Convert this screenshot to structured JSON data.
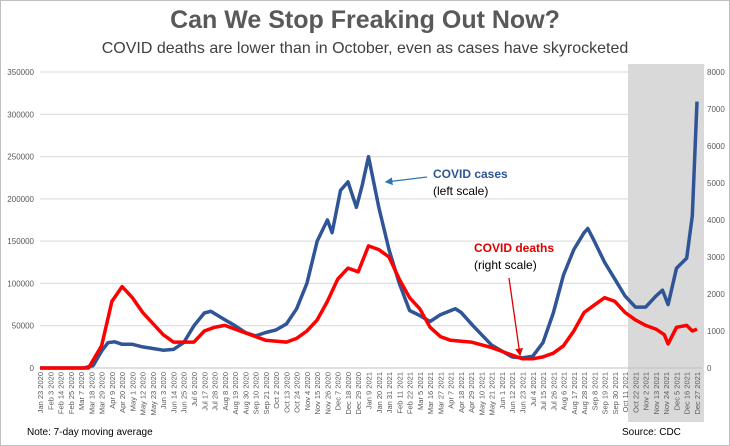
{
  "title": "Can We Stop Freaking Out Now?",
  "subtitle": "COVID deaths are lower than in October, even as cases have skyrocketed",
  "note": "Note: 7-day moving average",
  "source": "Source: CDC",
  "chart_data": {
    "type": "line",
    "x_axis": {
      "type": "date",
      "range": [
        "2020-01-23",
        "2021-12-27"
      ],
      "tick_interval_days": 11,
      "tick_labels": [
        "Jan 23 2020",
        "Feb 3 2020",
        "Feb 14 2020",
        "Feb 25 2020",
        "Mar 7 2020",
        "Mar 18 2020",
        "Mar 29 2020",
        "Apr 9 2020",
        "Apr 20 2020",
        "May 1 2020",
        "May 12 2020",
        "May 23 2020",
        "Jun 3 2020",
        "Jun 14 2020",
        "Jun 25 2020",
        "Jul 6 2020",
        "Jul 17 2020",
        "Jul 28 2020",
        "Aug 8 2020",
        "Aug 19 2020",
        "Aug 30 2020",
        "Sep 10 2020",
        "Sep 21 2020",
        "Oct 2 2020",
        "Oct 13 2020",
        "Oct 24 2020",
        "Nov 4 2020",
        "Nov 15 2020",
        "Nov 26 2020",
        "Dec 7 2020",
        "Dec 18 2020",
        "Dec 29 2020",
        "Jan 9 2021",
        "Jan 20 2021",
        "Jan 31 2021",
        "Feb 11 2021",
        "Feb 22 2021",
        "Mar 5 2021",
        "Mar 16 2021",
        "Mar 27 2021",
        "Apr 7 2021",
        "Apr 18 2021",
        "Apr 29 2021",
        "May 10 2021",
        "May 21 2021",
        "Jun 1 2021",
        "Jun 12 2021",
        "Jun 23 2021",
        "Jul 4 2021",
        "Jul 15 2021",
        "Jul 26 2021",
        "Aug 6 2021",
        "Aug 17 2021",
        "Aug 28 2021",
        "Sep 8 2021",
        "Sep 19 2021",
        "Sep 30 2021",
        "Oct 11 2021",
        "Oct 22 2021",
        "Nov 2 2021",
        "Nov 13 2021",
        "Nov 24 2021",
        "Dec 5 2021",
        "Dec 16 2021",
        "Dec 27 2021"
      ]
    },
    "y_left": {
      "range": [
        0,
        350000
      ],
      "ticks": [
        "0",
        "50000",
        "100000",
        "150000",
        "200000",
        "250000",
        "300000",
        "350000"
      ]
    },
    "y_right": {
      "range": [
        0,
        8000
      ],
      "ticks": [
        "0",
        "1000",
        "2000",
        "3000",
        "4000",
        "5000",
        "6000",
        "7000",
        "8000"
      ]
    },
    "grid": true,
    "highlight_region": {
      "start": "2021-10-14",
      "end": "2021-12-27",
      "color": "#d9d9d9"
    },
    "series": [
      {
        "name": "COVID cases",
        "axis": "left",
        "color": "#2f5597",
        "points": [
          [
            "2020-01-23",
            0
          ],
          [
            "2020-03-10",
            0
          ],
          [
            "2020-03-20",
            3000
          ],
          [
            "2020-03-29",
            20000
          ],
          [
            "2020-04-05",
            30000
          ],
          [
            "2020-04-12",
            31000
          ],
          [
            "2020-04-20",
            28000
          ],
          [
            "2020-05-01",
            28000
          ],
          [
            "2020-05-12",
            25000
          ],
          [
            "2020-05-23",
            23000
          ],
          [
            "2020-06-03",
            21000
          ],
          [
            "2020-06-14",
            22000
          ],
          [
            "2020-06-25",
            30000
          ],
          [
            "2020-07-06",
            50000
          ],
          [
            "2020-07-17",
            65000
          ],
          [
            "2020-07-24",
            67000
          ],
          [
            "2020-08-08",
            57000
          ],
          [
            "2020-08-19",
            50000
          ],
          [
            "2020-08-30",
            42000
          ],
          [
            "2020-09-10",
            38000
          ],
          [
            "2020-09-21",
            42000
          ],
          [
            "2020-10-02",
            45000
          ],
          [
            "2020-10-13",
            52000
          ],
          [
            "2020-10-24",
            70000
          ],
          [
            "2020-11-04",
            100000
          ],
          [
            "2020-11-15",
            150000
          ],
          [
            "2020-11-26",
            175000
          ],
          [
            "2020-12-01",
            160000
          ],
          [
            "2020-12-10",
            210000
          ],
          [
            "2020-12-18",
            220000
          ],
          [
            "2020-12-27",
            190000
          ],
          [
            "2021-01-02",
            215000
          ],
          [
            "2021-01-09",
            250000
          ],
          [
            "2021-01-20",
            190000
          ],
          [
            "2021-01-31",
            140000
          ],
          [
            "2021-02-11",
            100000
          ],
          [
            "2021-02-22",
            68000
          ],
          [
            "2021-03-05",
            62000
          ],
          [
            "2021-03-16",
            55000
          ],
          [
            "2021-03-27",
            63000
          ],
          [
            "2021-04-12",
            70000
          ],
          [
            "2021-04-18",
            66000
          ],
          [
            "2021-05-01",
            50000
          ],
          [
            "2021-05-21",
            27000
          ],
          [
            "2021-06-12",
            13000
          ],
          [
            "2021-06-23",
            12000
          ],
          [
            "2021-07-04",
            14000
          ],
          [
            "2021-07-15",
            30000
          ],
          [
            "2021-07-26",
            65000
          ],
          [
            "2021-08-06",
            110000
          ],
          [
            "2021-08-17",
            140000
          ],
          [
            "2021-08-28",
            160000
          ],
          [
            "2021-09-01",
            165000
          ],
          [
            "2021-09-08",
            150000
          ],
          [
            "2021-09-19",
            125000
          ],
          [
            "2021-09-30",
            105000
          ],
          [
            "2021-10-11",
            85000
          ],
          [
            "2021-10-22",
            72000
          ],
          [
            "2021-11-02",
            72000
          ],
          [
            "2021-11-13",
            85000
          ],
          [
            "2021-11-20",
            92000
          ],
          [
            "2021-11-26",
            75000
          ],
          [
            "2021-12-05",
            118000
          ],
          [
            "2021-12-16",
            130000
          ],
          [
            "2021-12-22",
            180000
          ],
          [
            "2021-12-27",
            315000
          ]
        ]
      },
      {
        "name": "COVID deaths",
        "axis": "right",
        "color": "#ff0000",
        "points": [
          [
            "2020-01-23",
            0
          ],
          [
            "2020-03-15",
            0
          ],
          [
            "2020-03-29",
            600
          ],
          [
            "2020-04-09",
            1800
          ],
          [
            "2020-04-20",
            2200
          ],
          [
            "2020-05-01",
            1900
          ],
          [
            "2020-05-12",
            1500
          ],
          [
            "2020-05-23",
            1200
          ],
          [
            "2020-06-03",
            900
          ],
          [
            "2020-06-14",
            700
          ],
          [
            "2020-07-06",
            700
          ],
          [
            "2020-07-17",
            1000
          ],
          [
            "2020-07-28",
            1100
          ],
          [
            "2020-08-08",
            1150
          ],
          [
            "2020-08-19",
            1050
          ],
          [
            "2020-09-10",
            850
          ],
          [
            "2020-09-21",
            750
          ],
          [
            "2020-10-13",
            700
          ],
          [
            "2020-10-24",
            800
          ],
          [
            "2020-11-04",
            1000
          ],
          [
            "2020-11-15",
            1300
          ],
          [
            "2020-11-26",
            1800
          ],
          [
            "2020-12-07",
            2400
          ],
          [
            "2020-12-18",
            2700
          ],
          [
            "2020-12-29",
            2600
          ],
          [
            "2021-01-09",
            3300
          ],
          [
            "2021-01-20",
            3200
          ],
          [
            "2021-01-31",
            3000
          ],
          [
            "2021-02-11",
            2400
          ],
          [
            "2021-02-22",
            1900
          ],
          [
            "2021-03-05",
            1600
          ],
          [
            "2021-03-16",
            1100
          ],
          [
            "2021-03-27",
            850
          ],
          [
            "2021-04-07",
            750
          ],
          [
            "2021-04-29",
            700
          ],
          [
            "2021-05-21",
            550
          ],
          [
            "2021-06-12",
            350
          ],
          [
            "2021-06-23",
            250
          ],
          [
            "2021-07-04",
            250
          ],
          [
            "2021-07-15",
            300
          ],
          [
            "2021-07-26",
            400
          ],
          [
            "2021-08-06",
            600
          ],
          [
            "2021-08-17",
            1000
          ],
          [
            "2021-08-28",
            1500
          ],
          [
            "2021-09-08",
            1700
          ],
          [
            "2021-09-19",
            1900
          ],
          [
            "2021-09-30",
            1800
          ],
          [
            "2021-10-11",
            1500
          ],
          [
            "2021-10-22",
            1300
          ],
          [
            "2021-11-02",
            1150
          ],
          [
            "2021-11-13",
            1050
          ],
          [
            "2021-11-22",
            900
          ],
          [
            "2021-11-26",
            650
          ],
          [
            "2021-12-05",
            1100
          ],
          [
            "2021-12-16",
            1150
          ],
          [
            "2021-12-22",
            1000
          ],
          [
            "2021-12-27",
            1050
          ]
        ]
      }
    ],
    "annotations": [
      {
        "label": "COVID cases",
        "sub": "(left scale)"
      },
      {
        "label": "COVID deaths",
        "sub": "(right scale)"
      }
    ]
  }
}
